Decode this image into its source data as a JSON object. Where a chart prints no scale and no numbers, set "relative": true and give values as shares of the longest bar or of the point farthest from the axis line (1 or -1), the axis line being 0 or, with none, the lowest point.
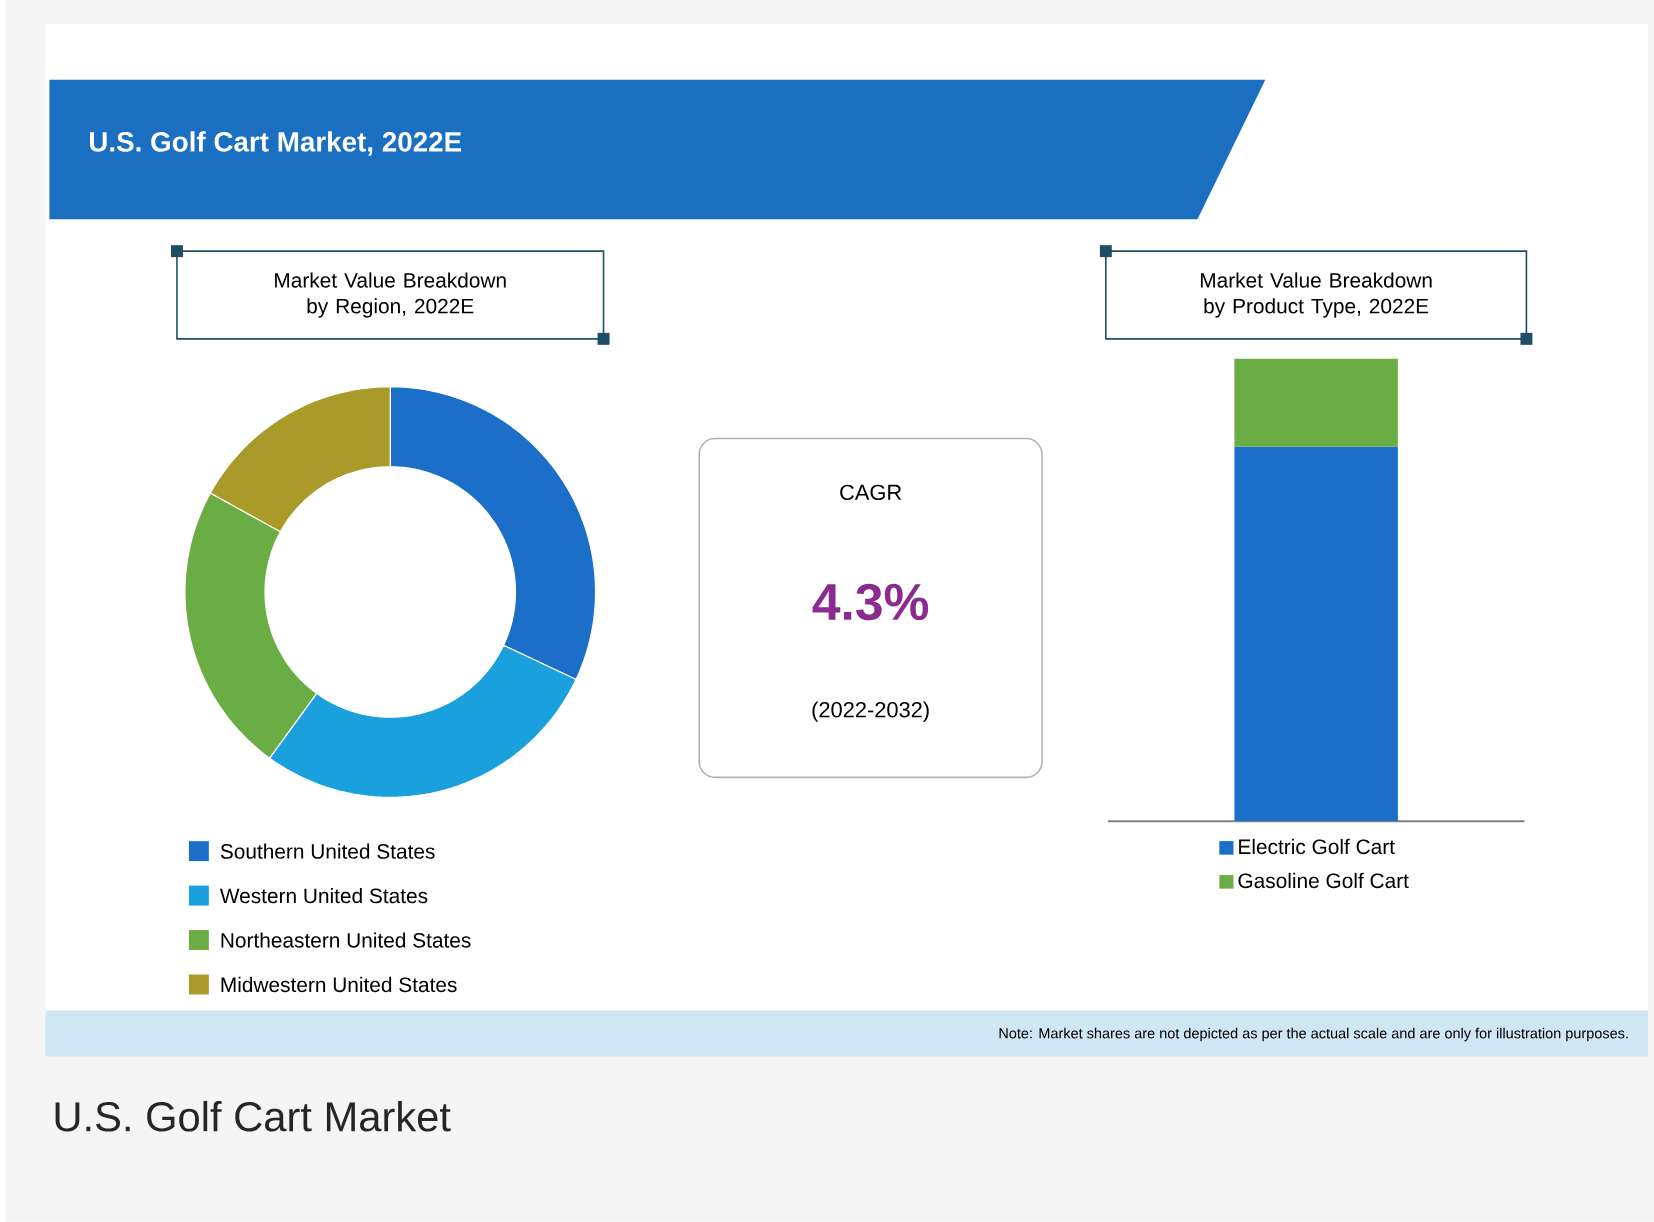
{
  "chart_data": [
    {
      "type": "other",
      "title": "U.S. Golf Cart Market, 2022E",
      "annotations": [
        "Note: Market shares are not depicted as per the actual scale and are only for illustration purposes.",
        "U.S. Golf Cart Market"
      ]
    },
    {
      "type": "donut",
      "title": "Market Value Breakdown by Region, 2022E",
      "categories": [
        "Southern United States",
        "Western United States",
        "Northeastern United States",
        "Midwestern United States"
      ],
      "values": [
        32,
        28,
        23,
        17
      ],
      "colors": [
        "#1b6fc8",
        "#1aa0dc",
        "#6aad45",
        "#a99a2a"
      ],
      "legend": "bottom"
    },
    {
      "type": "other",
      "title": "CAGR",
      "annotations": [
        "4.3%",
        "(2022-2032)"
      ]
    },
    {
      "type": "bar",
      "title": "Market Value Breakdown by Product Type, 2022E",
      "categories": [
        null
      ],
      "stacked": true,
      "relative": true,
      "legend": "bottom",
      "series": [
        {
          "name": "Electric Golf Cart",
          "color": "#1b6fc8",
          "values": [
            0.81
          ]
        },
        {
          "name": "Gasoline Golf Cart",
          "color": "#6aad45",
          "values": [
            0.19
          ]
        }
      ]
    }
  ]
}
